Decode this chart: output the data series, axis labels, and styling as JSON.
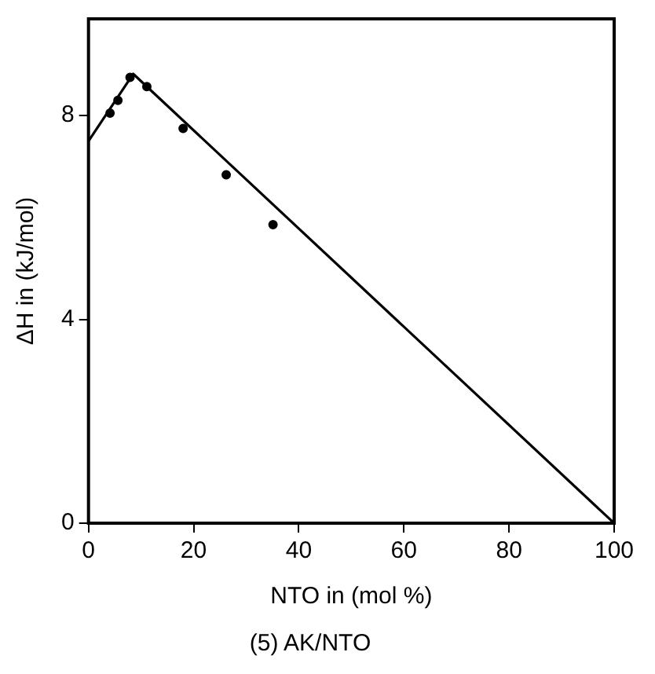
{
  "chart_data": {
    "type": "scatter",
    "title": "(5) AK/NTO",
    "xlabel": "NTO in (mol %)",
    "ylabel": "ΔH in (kJ/mol)",
    "xlim": [
      0,
      100
    ],
    "xticks": [
      0,
      20,
      40,
      60,
      80,
      100
    ],
    "ylim": [
      0,
      9.9
    ],
    "yticks": [
      0,
      4,
      8
    ],
    "grid": false,
    "legend": false,
    "series": [
      {
        "color": "#000000",
        "marker": "circle",
        "x": [
          4.1,
          5.6,
          7.9,
          11.1,
          18,
          26.2,
          35.1
        ],
        "values": [
          8.05,
          8.3,
          8.75,
          8.57,
          7.75,
          6.84,
          5.86
        ]
      },
      {
        "type": "line",
        "color": "#000000",
        "marker": "none",
        "x": [
          0,
          8.5,
          100
        ],
        "values": [
          7.5,
          8.82,
          0
        ]
      }
    ]
  }
}
